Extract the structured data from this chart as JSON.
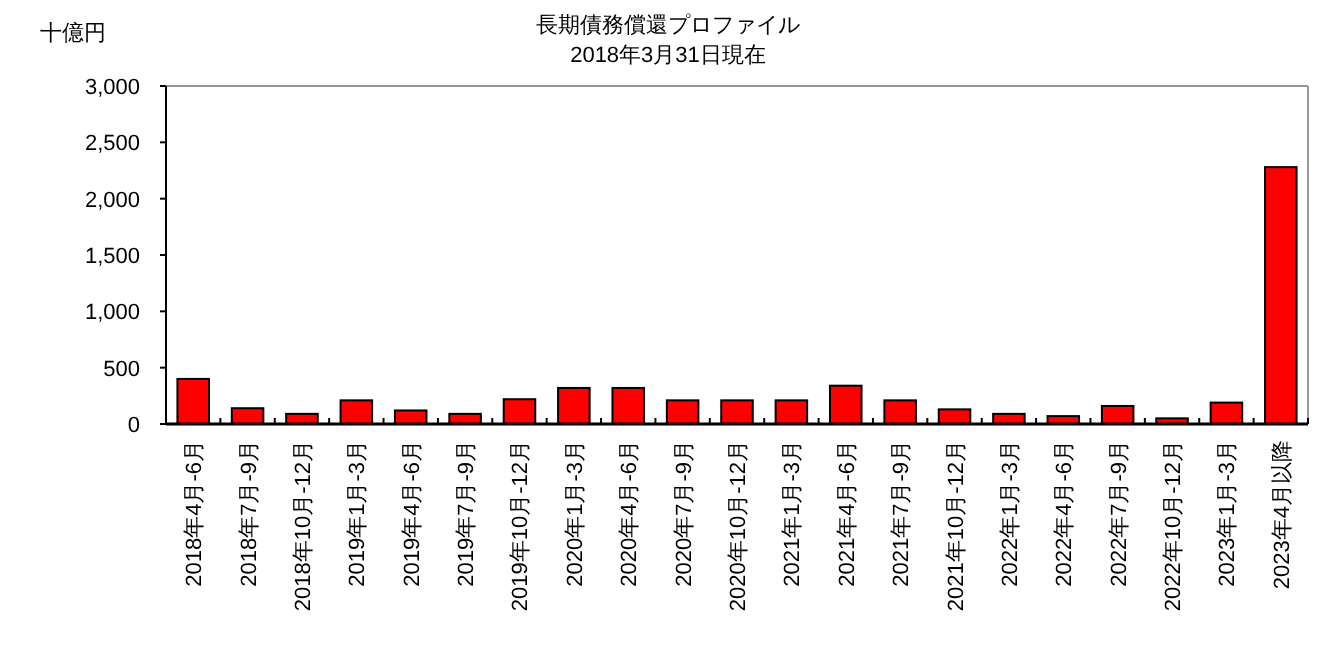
{
  "chart_data": {
    "type": "bar",
    "title": "長期債務償還プロファイル",
    "subtitle": "2018年3月31日現在",
    "ylabel": "十億円",
    "categories": [
      "2018年4月-6月",
      "2018年7月-9月",
      "2018年10月-12月",
      "2019年1月-3月",
      "2019年4月-6月",
      "2019年7月-9月",
      "2019年10月-12月",
      "2020年1月-3月",
      "2020年4月-6月",
      "2020年7月-9月",
      "2020年10月-12月",
      "2021年1月-3月",
      "2021年4月-6月",
      "2021年7月-9月",
      "2021年10月-12月",
      "2022年1月-3月",
      "2022年4月-6月",
      "2022年7月-9月",
      "2022年10月-12月",
      "2023年1月-3月",
      "2023年4月以降"
    ],
    "values": [
      400,
      140,
      90,
      210,
      120,
      90,
      220,
      320,
      320,
      210,
      210,
      210,
      340,
      210,
      130,
      90,
      70,
      160,
      50,
      190,
      2280
    ],
    "color": "#ff0000",
    "ylim": [
      0,
      3000
    ],
    "yticks": [
      {
        "value": 0,
        "label": "0"
      },
      {
        "value": 500,
        "label": "500"
      },
      {
        "value": 1000,
        "label": "1,000"
      },
      {
        "value": 1500,
        "label": "1,500"
      },
      {
        "value": 2000,
        "label": "2,000"
      },
      {
        "value": 2500,
        "label": "2,500"
      },
      {
        "value": 3000,
        "label": "3,000"
      }
    ],
    "grid": false
  }
}
